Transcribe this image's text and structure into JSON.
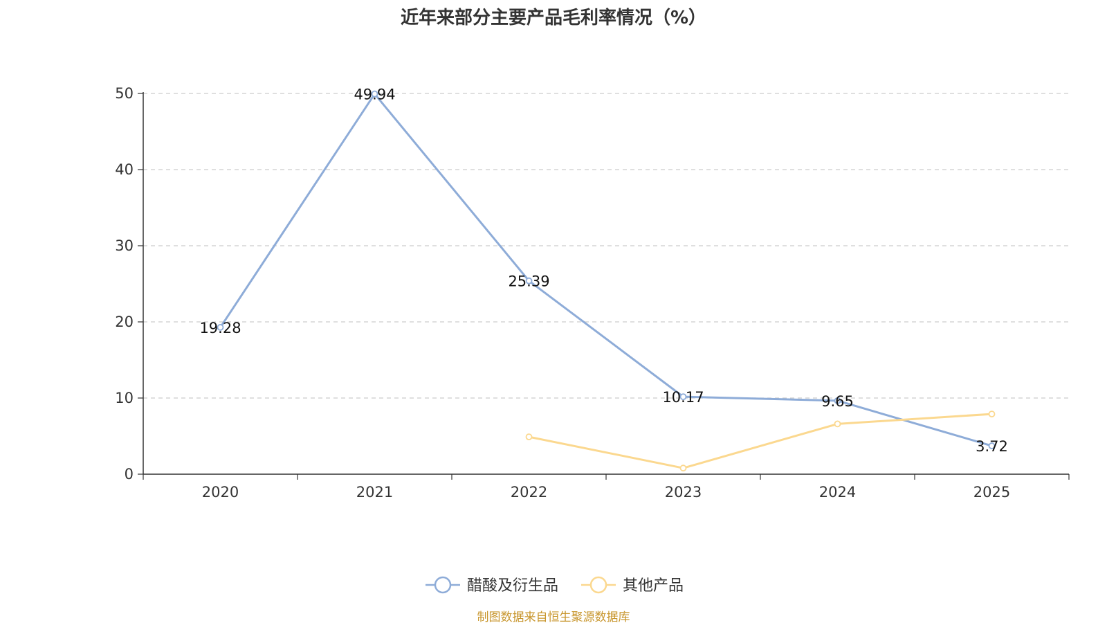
{
  "chart_data": {
    "type": "line",
    "title": "近年来部分主要产品毛利率情况（%）",
    "categories": [
      "2020",
      "2021",
      "2022",
      "2023",
      "2024",
      "2025"
    ],
    "ylim": [
      0,
      50
    ],
    "yticks": [
      "0",
      "10",
      "20",
      "30",
      "40",
      "50"
    ],
    "grid": true,
    "legend_position": "bottom-center",
    "series": [
      {
        "name": "醋酸及衍生品",
        "color": "#8eacd8",
        "values": [
          19.28,
          49.94,
          25.39,
          10.17,
          9.65,
          3.72
        ],
        "labels": [
          "19.28",
          "49.94",
          "25.39",
          "10.17",
          "9.65",
          "3.72"
        ]
      },
      {
        "name": "其他产品",
        "color": "#fbd88f",
        "values": [
          null,
          null,
          4.9,
          0.8,
          6.6,
          7.9
        ]
      }
    ],
    "source_note": "制图数据来自恒生聚源数据库"
  }
}
